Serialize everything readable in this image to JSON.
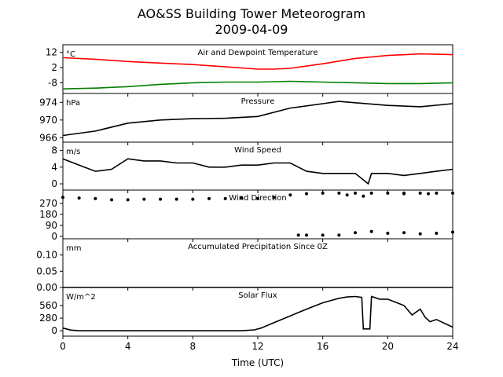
{
  "title": "AO&SS Building Tower Meteorogram",
  "subtitle": "2009-04-09",
  "colors": {
    "temperature": "#ff0000",
    "dewpoint": "#008000",
    "series": "#000000"
  },
  "chart_data": [
    {
      "type": "line",
      "title": "Air and Dewpoint Temperature",
      "unit_label": "°C",
      "yticks": [
        12,
        2,
        -8
      ],
      "ylim": [
        -15,
        17
      ],
      "xlim": [
        0,
        24
      ],
      "series": [
        {
          "color": "#ff0000",
          "x": [
            0,
            2,
            4,
            6,
            8,
            10,
            12,
            13,
            14,
            16,
            18,
            20,
            22,
            24
          ],
          "y": [
            8.5,
            7.5,
            6,
            5,
            4,
            2.5,
            1,
            1,
            1.5,
            4.5,
            8,
            10,
            11,
            10.5
          ]
        },
        {
          "color": "#008000",
          "x": [
            0,
            2,
            4,
            6,
            8,
            10,
            12,
            14,
            16,
            18,
            20,
            22,
            24
          ],
          "y": [
            -12,
            -11.5,
            -10.5,
            -9,
            -8,
            -7.5,
            -7.5,
            -7,
            -7.5,
            -8,
            -8.5,
            -8.5,
            -8
          ]
        }
      ]
    },
    {
      "type": "line",
      "title": "Pressure",
      "unit_label": "hPa",
      "yticks": [
        974,
        970,
        966
      ],
      "ylim": [
        965,
        976
      ],
      "xlim": [
        0,
        24
      ],
      "series": [
        {
          "x": [
            0,
            2,
            4,
            6,
            8,
            10,
            12,
            14,
            16,
            17,
            18,
            20,
            22,
            24
          ],
          "y": [
            966.5,
            967.5,
            969.3,
            970,
            970.3,
            970.4,
            970.8,
            972.7,
            973.7,
            974.2,
            973.9,
            973.3,
            973,
            973.7
          ]
        }
      ]
    },
    {
      "type": "line",
      "title": "Wind Speed",
      "unit_label": "m/s",
      "yticks": [
        8,
        4,
        0
      ],
      "ylim": [
        -1.5,
        10
      ],
      "xlim": [
        0,
        24
      ],
      "series": [
        {
          "x": [
            0,
            1,
            2,
            3,
            4,
            5,
            6,
            7,
            8,
            9,
            10,
            11,
            12,
            13,
            14,
            15,
            16,
            17,
            18,
            18.8,
            19,
            20,
            21,
            22,
            23,
            24
          ],
          "y": [
            6,
            4.5,
            3,
            3.5,
            6,
            5.5,
            5.5,
            5,
            5,
            4,
            4,
            4.5,
            4.5,
            5,
            5,
            3,
            2.5,
            2.5,
            2.5,
            0,
            2.5,
            2.5,
            2,
            2.5,
            3,
            3.5
          ]
        }
      ]
    },
    {
      "type": "scatter",
      "title": "Wind Direction",
      "unit_label": "",
      "yticks": [
        270,
        180,
        90,
        0
      ],
      "ylim": [
        -20,
        380
      ],
      "xlim": [
        0,
        24
      ],
      "series": [
        {
          "x": [
            0,
            1,
            2,
            3,
            4,
            5,
            6,
            7,
            8,
            9,
            10,
            11,
            12,
            13,
            14,
            15,
            16,
            17,
            18,
            19,
            20,
            21,
            22,
            23,
            24,
            14.5,
            15,
            16,
            17,
            18,
            19,
            20,
            21,
            22,
            23,
            24,
            17.5,
            18.5,
            21,
            22.5
          ],
          "y": [
            320,
            315,
            310,
            300,
            300,
            305,
            305,
            305,
            305,
            310,
            310,
            315,
            310,
            320,
            340,
            350,
            355,
            355,
            355,
            355,
            355,
            355,
            355,
            355,
            355,
            10,
            10,
            10,
            10,
            30,
            40,
            25,
            30,
            20,
            25,
            35,
            340,
            330,
            350,
            350
          ]
        }
      ]
    },
    {
      "type": "line",
      "title": "Accumulated Precipitation Since 0Z",
      "unit_label": "mm",
      "yticks": [
        0.1,
        0.05,
        0.0
      ],
      "ytick_labels": [
        "0.10",
        "0.05",
        "0.00"
      ],
      "ylim": [
        0,
        0.15
      ],
      "xlim": [
        0,
        24
      ],
      "series": [
        {
          "x": [
            0,
            24
          ],
          "y": [
            0,
            0
          ]
        }
      ]
    },
    {
      "type": "line",
      "title": "Solar Flux",
      "unit_label": "W/m^2",
      "yticks": [
        560,
        280,
        0
      ],
      "xticks": [
        0,
        4,
        8,
        12,
        16,
        20,
        24
      ],
      "xlabel": "Time (UTC)",
      "ylim": [
        -120,
        960
      ],
      "xlim": [
        0,
        24
      ],
      "series": [
        {
          "x": [
            0,
            0.5,
            1,
            2,
            4,
            6,
            8,
            10,
            11,
            11.8,
            12.2,
            13,
            14,
            15,
            16,
            17,
            17.5,
            18,
            18.4,
            18.5,
            18.9,
            19,
            19.5,
            20,
            21,
            21.5,
            22,
            22.3,
            22.6,
            23,
            24
          ],
          "y": [
            60,
            15,
            0,
            0,
            0,
            0,
            0,
            0,
            0,
            20,
            60,
            180,
            330,
            480,
            620,
            720,
            750,
            760,
            740,
            40,
            40,
            760,
            700,
            700,
            560,
            350,
            480,
            300,
            200,
            250,
            80
          ]
        }
      ]
    }
  ]
}
